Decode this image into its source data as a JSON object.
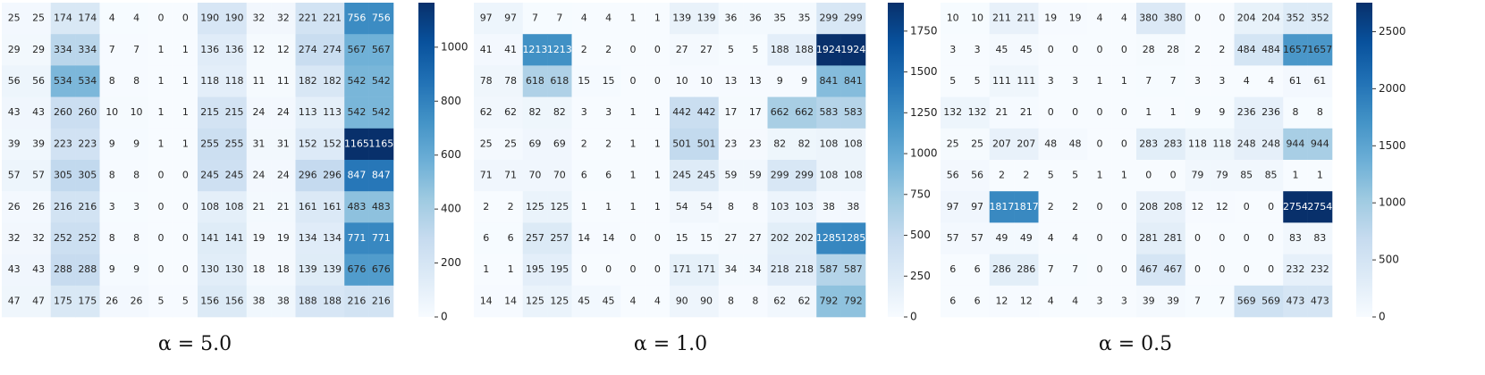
{
  "chart_data": [
    {
      "type": "heatmap",
      "title": "α = 5.0",
      "clim": [
        0,
        1165
      ],
      "cticks": [
        0,
        200,
        400,
        600,
        800,
        1000
      ],
      "colormap": [
        "#f7fbff",
        "#deebf7",
        "#c6dbef",
        "#9ecae1",
        "#6baed6",
        "#4292c6",
        "#2171b5",
        "#08519c",
        "#08306b"
      ],
      "values": [
        [
          25,
          25,
          174,
          174,
          4,
          4,
          0,
          0,
          190,
          190,
          32,
          32,
          221,
          221,
          756,
          756
        ],
        [
          29,
          29,
          334,
          334,
          7,
          7,
          1,
          1,
          136,
          136,
          12,
          12,
          274,
          274,
          567,
          567
        ],
        [
          56,
          56,
          534,
          534,
          8,
          8,
          1,
          1,
          118,
          118,
          11,
          11,
          182,
          182,
          542,
          542
        ],
        [
          43,
          43,
          260,
          260,
          10,
          10,
          1,
          1,
          215,
          215,
          24,
          24,
          113,
          113,
          542,
          542
        ],
        [
          39,
          39,
          223,
          223,
          9,
          9,
          1,
          1,
          255,
          255,
          31,
          31,
          152,
          152,
          1165,
          1165
        ],
        [
          57,
          57,
          305,
          305,
          8,
          8,
          0,
          0,
          245,
          245,
          24,
          24,
          296,
          296,
          847,
          847
        ],
        [
          26,
          26,
          216,
          216,
          3,
          3,
          0,
          0,
          108,
          108,
          21,
          21,
          161,
          161,
          483,
          483
        ],
        [
          32,
          32,
          252,
          252,
          8,
          8,
          0,
          0,
          141,
          141,
          19,
          19,
          134,
          134,
          771,
          771
        ],
        [
          43,
          43,
          288,
          288,
          9,
          9,
          0,
          0,
          130,
          130,
          18,
          18,
          139,
          139,
          676,
          676
        ],
        [
          47,
          47,
          175,
          175,
          26,
          26,
          5,
          5,
          156,
          156,
          38,
          38,
          188,
          188,
          216,
          216
        ]
      ]
    },
    {
      "type": "heatmap",
      "title": "α = 1.0",
      "clim": [
        0,
        1924
      ],
      "cticks": [
        0,
        250,
        500,
        750,
        1000,
        1250,
        1500,
        1750
      ],
      "colormap": [
        "#f7fbff",
        "#deebf7",
        "#c6dbef",
        "#9ecae1",
        "#6baed6",
        "#4292c6",
        "#2171b5",
        "#08519c",
        "#08306b"
      ],
      "values": [
        [
          97,
          97,
          7,
          7,
          4,
          4,
          1,
          1,
          139,
          139,
          36,
          36,
          35,
          35,
          299,
          299
        ],
        [
          41,
          41,
          1213,
          1213,
          2,
          2,
          0,
          0,
          27,
          27,
          5,
          5,
          188,
          188,
          1924,
          1924
        ],
        [
          78,
          78,
          618,
          618,
          15,
          15,
          0,
          0,
          10,
          10,
          13,
          13,
          9,
          9,
          841,
          841
        ],
        [
          62,
          62,
          82,
          82,
          3,
          3,
          1,
          1,
          442,
          442,
          17,
          17,
          662,
          662,
          583,
          583
        ],
        [
          25,
          25,
          69,
          69,
          2,
          2,
          1,
          1,
          501,
          501,
          23,
          23,
          82,
          82,
          108,
          108
        ],
        [
          71,
          71,
          70,
          70,
          6,
          6,
          1,
          1,
          245,
          245,
          59,
          59,
          299,
          299,
          108,
          108
        ],
        [
          2,
          2,
          125,
          125,
          1,
          1,
          1,
          1,
          54,
          54,
          8,
          8,
          103,
          103,
          38,
          38
        ],
        [
          6,
          6,
          257,
          257,
          14,
          14,
          0,
          0,
          15,
          15,
          27,
          27,
          202,
          202,
          1285,
          1285
        ],
        [
          1,
          1,
          195,
          195,
          0,
          0,
          0,
          0,
          171,
          171,
          34,
          34,
          218,
          218,
          587,
          587
        ],
        [
          14,
          14,
          125,
          125,
          45,
          45,
          4,
          4,
          90,
          90,
          8,
          8,
          62,
          62,
          792,
          792
        ]
      ]
    },
    {
      "type": "heatmap",
      "title": "α = 0.5",
      "clim": [
        0,
        2754
      ],
      "cticks": [
        0,
        500,
        1000,
        1500,
        2000,
        2500
      ],
      "colormap": [
        "#f7fbff",
        "#deebf7",
        "#c6dbef",
        "#9ecae1",
        "#6baed6",
        "#4292c6",
        "#2171b5",
        "#08519c",
        "#08306b"
      ],
      "values": [
        [
          10,
          10,
          211,
          211,
          19,
          19,
          4,
          4,
          380,
          380,
          0,
          0,
          204,
          204,
          352,
          352
        ],
        [
          3,
          3,
          45,
          45,
          0,
          0,
          0,
          0,
          28,
          28,
          2,
          2,
          484,
          484,
          1657,
          1657
        ],
        [
          5,
          5,
          111,
          111,
          3,
          3,
          1,
          1,
          7,
          7,
          3,
          3,
          4,
          4,
          61,
          61
        ],
        [
          132,
          132,
          21,
          21,
          0,
          0,
          0,
          0,
          1,
          1,
          9,
          9,
          236,
          236,
          8,
          8
        ],
        [
          25,
          25,
          207,
          207,
          48,
          48,
          0,
          0,
          283,
          283,
          118,
          118,
          248,
          248,
          944,
          944
        ],
        [
          56,
          56,
          2,
          2,
          5,
          5,
          1,
          1,
          0,
          0,
          79,
          79,
          85,
          85,
          1,
          1
        ],
        [
          97,
          97,
          1817,
          1817,
          2,
          2,
          0,
          0,
          208,
          208,
          12,
          12,
          0,
          0,
          2754,
          2754
        ],
        [
          57,
          57,
          49,
          49,
          4,
          4,
          0,
          0,
          281,
          281,
          0,
          0,
          0,
          0,
          83,
          83
        ],
        [
          6,
          6,
          286,
          286,
          7,
          7,
          0,
          0,
          467,
          467,
          0,
          0,
          0,
          0,
          232,
          232
        ],
        [
          6,
          6,
          12,
          12,
          4,
          4,
          3,
          3,
          39,
          39,
          7,
          7,
          569,
          569,
          473,
          473
        ]
      ]
    }
  ]
}
